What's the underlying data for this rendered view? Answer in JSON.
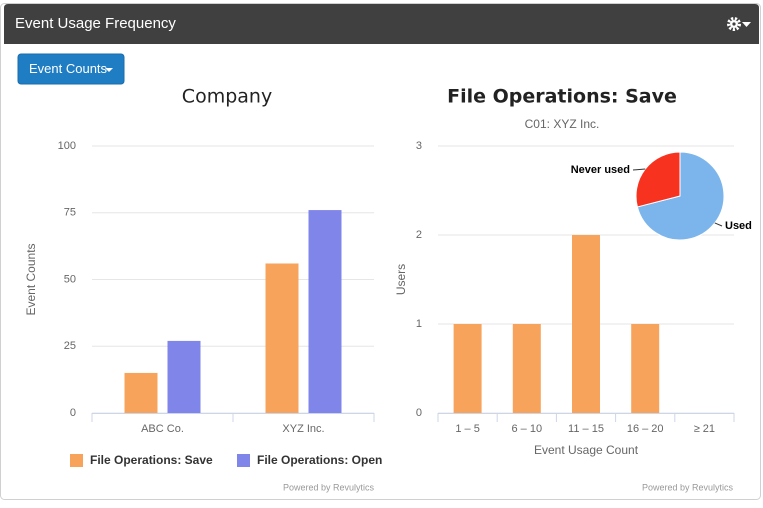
{
  "header": {
    "title": "Event Usage Frequency"
  },
  "button": {
    "label": "Event Counts"
  },
  "chart_data": [
    {
      "type": "bar",
      "title": "Company",
      "categories": [
        "ABC Co.",
        "XYZ Inc."
      ],
      "series": [
        {
          "name": "File Operations: Save",
          "color": "#f7a35c",
          "values": [
            15,
            56
          ]
        },
        {
          "name": "File Operations: Open",
          "color": "#8085e9",
          "values": [
            27,
            76
          ]
        }
      ],
      "y_label": "Event Counts",
      "ylim": [
        0,
        100
      ],
      "yticks": [
        0,
        25,
        50,
        75,
        100
      ],
      "grid": true
    },
    {
      "type": "bar",
      "title": "File Operations: Save",
      "subtitle": "C01: XYZ Inc.",
      "categories": [
        "1 – 5",
        "6 – 10",
        "11 – 15",
        "16 – 20",
        "≥ 21"
      ],
      "values": [
        1,
        1,
        2,
        1,
        0
      ],
      "color": "#f7a35c",
      "x_label": "Event Usage Count",
      "y_label": "Users",
      "ylim": [
        0,
        3
      ],
      "yticks": [
        0,
        1,
        2,
        3
      ],
      "grid": true
    },
    {
      "type": "pie",
      "categories": [
        "Used",
        "Never used"
      ],
      "values": [
        71,
        29
      ],
      "colors": [
        "#7cb5ec",
        "#f7321f"
      ]
    }
  ],
  "footer": [
    "Powered by Revulytics",
    "Powered by Revulytics"
  ]
}
